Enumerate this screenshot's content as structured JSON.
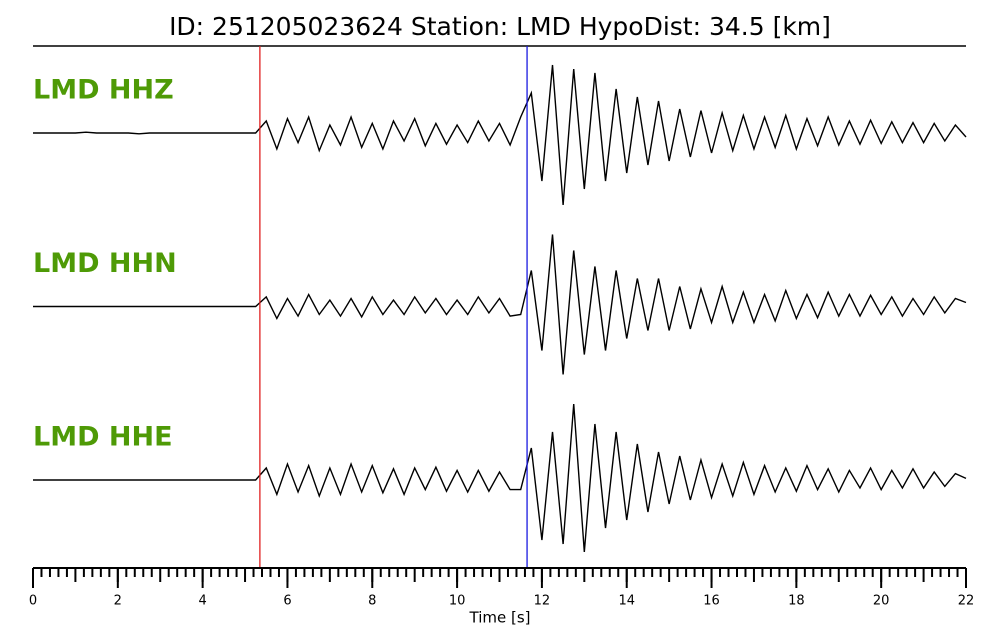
{
  "chart_data": {
    "type": "waveform",
    "title": "ID: 251205023624   Station: LMD   HypoDist:    34.5 [km]",
    "xlabel": "Time [s]",
    "xlim": [
      0,
      22
    ],
    "xticks": [
      0,
      2,
      4,
      6,
      8,
      10,
      12,
      14,
      16,
      18,
      20,
      22
    ],
    "minor_xtick_step": 0.2,
    "label_color": "#4e9a06",
    "picks": [
      {
        "value": 5.35,
        "color": "#e02020"
      },
      {
        "value": 11.65,
        "color": "#1a1ae0"
      }
    ],
    "x": [
      0,
      0.25,
      0.5,
      0.75,
      1,
      1.25,
      1.5,
      1.75,
      2,
      2.25,
      2.5,
      2.75,
      3,
      3.25,
      3.5,
      3.75,
      4,
      4.25,
      4.5,
      4.75,
      5,
      5.25,
      5.5,
      5.75,
      6,
      6.25,
      6.5,
      6.75,
      7,
      7.25,
      7.5,
      7.75,
      8,
      8.25,
      8.5,
      8.75,
      9,
      9.25,
      9.5,
      9.75,
      10,
      10.25,
      10.5,
      10.75,
      11,
      11.25,
      11.5,
      11.75,
      12,
      12.25,
      12.5,
      12.75,
      13,
      13.25,
      13.5,
      13.75,
      14,
      14.25,
      14.5,
      14.75,
      15,
      15.25,
      15.5,
      15.75,
      16,
      16.25,
      16.5,
      16.75,
      17,
      17.25,
      17.5,
      17.75,
      18,
      18.25,
      18.5,
      18.75,
      19,
      19.25,
      19.5,
      19.75,
      20,
      20.25,
      20.5,
      20.75,
      21,
      21.25,
      21.5,
      21.75,
      22
    ],
    "series": [
      {
        "name": "LMD HHZ",
        "color": "#000000",
        "values": [
          0,
          0,
          0,
          0,
          0,
          0.01,
          0,
          0,
          0,
          0,
          -0.01,
          0,
          0,
          0,
          0,
          0,
          0,
          0,
          0,
          0,
          0,
          0,
          0.15,
          -0.2,
          0.18,
          -0.12,
          0.2,
          -0.22,
          0.1,
          -0.15,
          0.2,
          -0.18,
          0.12,
          -0.2,
          0.15,
          -0.1,
          0.18,
          -0.16,
          0.12,
          -0.14,
          0.1,
          -0.12,
          0.15,
          -0.1,
          0.12,
          -0.15,
          0.2,
          0.5,
          -0.6,
          0.85,
          -0.9,
          0.8,
          -0.7,
          0.75,
          -0.6,
          0.55,
          -0.5,
          0.45,
          -0.4,
          0.4,
          -0.35,
          0.3,
          -0.3,
          0.28,
          -0.25,
          0.25,
          -0.22,
          0.22,
          -0.2,
          0.2,
          -0.18,
          0.22,
          -0.2,
          0.18,
          -0.16,
          0.2,
          -0.15,
          0.15,
          -0.14,
          0.16,
          -0.13,
          0.14,
          -0.12,
          0.13,
          -0.12,
          0.12,
          -0.1,
          0.1,
          -0.05
        ]
      },
      {
        "name": "LMD HHN",
        "color": "#000000",
        "values": [
          0,
          0,
          0,
          0,
          0,
          0,
          0,
          0,
          0,
          0,
          0,
          0,
          0,
          0,
          0,
          0,
          0,
          0,
          0,
          0,
          0,
          0,
          0.12,
          -0.15,
          0.1,
          -0.12,
          0.15,
          -0.1,
          0.08,
          -0.12,
          0.1,
          -0.13,
          0.12,
          -0.1,
          0.08,
          -0.1,
          0.12,
          -0.08,
          0.1,
          -0.1,
          0.08,
          -0.1,
          0.12,
          -0.08,
          0.1,
          -0.12,
          -0.1,
          0.45,
          -0.55,
          0.9,
          -0.85,
          0.7,
          -0.6,
          0.5,
          -0.55,
          0.45,
          -0.4,
          0.35,
          -0.3,
          0.35,
          -0.3,
          0.25,
          -0.28,
          0.22,
          -0.2,
          0.25,
          -0.2,
          0.18,
          -0.2,
          0.15,
          -0.18,
          0.2,
          -0.15,
          0.15,
          -0.14,
          0.18,
          -0.12,
          0.15,
          -0.12,
          0.14,
          -0.1,
          0.12,
          -0.12,
          0.1,
          -0.1,
          0.12,
          -0.08,
          0.1,
          0.05
        ]
      },
      {
        "name": "LMD HHE",
        "color": "#000000",
        "values": [
          0,
          0,
          0,
          0,
          0,
          0,
          0,
          0,
          0,
          0,
          0,
          0,
          0,
          0,
          0,
          0,
          0,
          0,
          0,
          0,
          0,
          0,
          0.15,
          -0.18,
          0.2,
          -0.15,
          0.18,
          -0.2,
          0.15,
          -0.18,
          0.2,
          -0.15,
          0.18,
          -0.16,
          0.14,
          -0.18,
          0.15,
          -0.12,
          0.16,
          -0.14,
          0.12,
          -0.15,
          0.12,
          -0.14,
          0.1,
          -0.12,
          -0.12,
          0.4,
          -0.75,
          0.6,
          -0.8,
          0.95,
          -0.9,
          0.7,
          -0.6,
          0.6,
          -0.5,
          0.45,
          -0.4,
          0.35,
          -0.3,
          0.3,
          -0.25,
          0.25,
          -0.22,
          0.2,
          -0.2,
          0.22,
          -0.18,
          0.18,
          -0.15,
          0.15,
          -0.14,
          0.18,
          -0.12,
          0.14,
          -0.15,
          0.12,
          -0.1,
          0.15,
          -0.12,
          0.12,
          -0.1,
          0.14,
          -0.1,
          0.1,
          -0.08,
          0.08,
          0.02
        ]
      }
    ]
  }
}
